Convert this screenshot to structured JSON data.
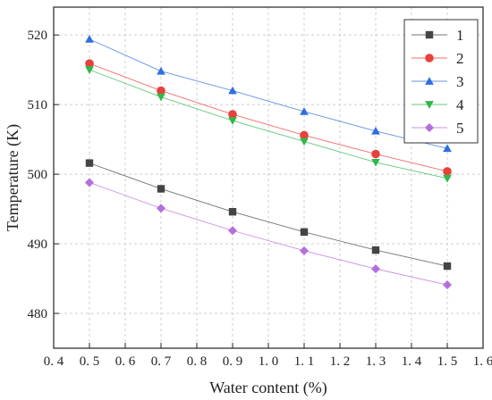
{
  "chart_data": {
    "type": "line",
    "xlabel": "Water content (%)",
    "ylabel": "Temperature (K)",
    "xlim": [
      0.4,
      1.6
    ],
    "ylim": [
      475,
      524
    ],
    "x_ticks": [
      "0. 4",
      "0. 5",
      "0. 6",
      "0. 7",
      "0. 8",
      "0. 9",
      "1. 0",
      "1. 1",
      "1. 2",
      "1. 3",
      "1. 4",
      "1. 5",
      "1. 6"
    ],
    "x_tick_values": [
      0.4,
      0.5,
      0.6,
      0.7,
      0.8,
      0.9,
      1.0,
      1.1,
      1.2,
      1.3,
      1.4,
      1.5,
      1.6
    ],
    "y_ticks": [
      "480",
      "490",
      "500",
      "510",
      "520"
    ],
    "y_tick_values": [
      480,
      490,
      500,
      510,
      520
    ],
    "grid": true,
    "legend_position": "top-right",
    "x": [
      0.5,
      0.7,
      0.9,
      1.1,
      1.3,
      1.5
    ],
    "series": [
      {
        "name": "1",
        "marker": "square",
        "color": "#444444",
        "values": [
          501.6,
          497.9,
          494.6,
          491.7,
          489.1,
          486.8
        ]
      },
      {
        "name": "2",
        "marker": "circle",
        "color": "#e8403a",
        "values": [
          515.9,
          512.0,
          508.6,
          505.6,
          502.9,
          500.4
        ]
      },
      {
        "name": "3",
        "marker": "triangle-up",
        "color": "#2f6fdc",
        "values": [
          519.4,
          514.8,
          512.0,
          509.0,
          506.2,
          503.7
        ]
      },
      {
        "name": "4",
        "marker": "triangle-down",
        "color": "#2fb84a",
        "values": [
          515.0,
          511.1,
          507.7,
          504.7,
          501.7,
          499.4
        ]
      },
      {
        "name": "5",
        "marker": "diamond",
        "color": "#b56fdc",
        "values": [
          498.8,
          495.1,
          491.9,
          489.0,
          486.4,
          484.1
        ]
      }
    ]
  }
}
